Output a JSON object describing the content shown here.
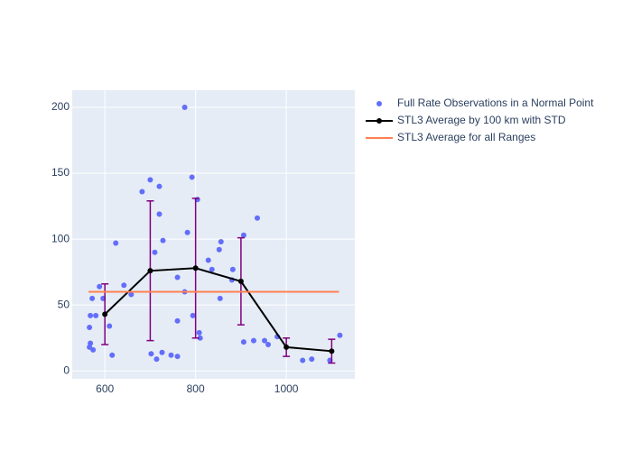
{
  "chart_data": {
    "type": "scatter",
    "xlim": [
      528,
      1151
    ],
    "ylim": [
      -6,
      213
    ],
    "xticks": [
      600,
      800,
      1000
    ],
    "yticks": [
      0,
      50,
      100,
      150,
      200
    ],
    "grid": true,
    "legend": "right",
    "series": [
      {
        "name": "Full Rate Observations in a Normal Point",
        "type": "scatter",
        "color": "#636efa",
        "x": [
          566,
          568,
          568,
          566,
          572,
          574,
          580,
          588,
          596,
          610,
          616,
          624,
          642,
          658,
          682,
          700,
          702,
          710,
          714,
          720,
          720,
          726,
          728,
          746,
          760,
          760,
          760,
          776,
          776,
          782,
          792,
          794,
          804,
          808,
          810,
          828,
          836,
          852,
          856,
          854,
          880,
          882,
          906,
          906,
          928,
          936,
          952,
          960,
          980,
          1036,
          1056,
          1096,
          1118
        ],
        "values": [
          33,
          42,
          21,
          18,
          55,
          16,
          42,
          64,
          55,
          34,
          12,
          97,
          65,
          58,
          136,
          145,
          13,
          90,
          9,
          140,
          119,
          14,
          99,
          12,
          71,
          38,
          11,
          200,
          60,
          105,
          147,
          42,
          130,
          29,
          25,
          84,
          77,
          92,
          98,
          55,
          69,
          77,
          103,
          22,
          23,
          116,
          23,
          20,
          26,
          8,
          9,
          8,
          27
        ]
      },
      {
        "name": "STL3 Average by 100 km with STD",
        "type": "line",
        "color": "#000000",
        "error_color": "#800080",
        "x": [
          600,
          700,
          800,
          900,
          1000,
          1100
        ],
        "values": [
          43,
          76,
          78,
          68,
          18,
          15
        ],
        "errors": [
          23,
          53,
          53,
          33,
          7,
          9
        ]
      },
      {
        "name": "STL3 Average for all Ranges",
        "type": "line",
        "color": "#ff7f50",
        "x": [
          564,
          1116
        ],
        "values": [
          60,
          60
        ]
      }
    ]
  }
}
